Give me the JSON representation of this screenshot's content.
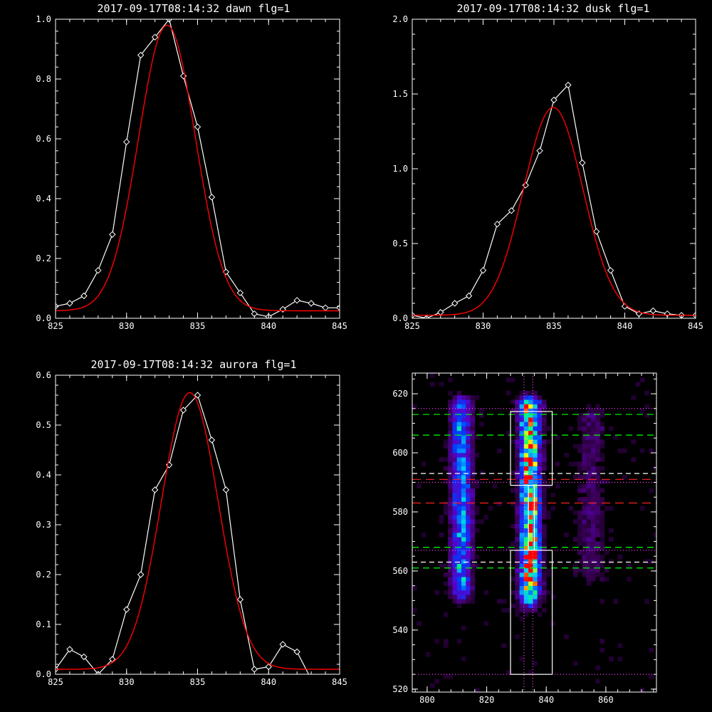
{
  "colors": {
    "background": "#000000",
    "axis": "#ffffff",
    "data_line": "#ffffff",
    "fit_line": "#ff0000",
    "green_dashed": "#00ff00",
    "red_dashed": "#ff2020",
    "white_dashed": "#ffffff",
    "magenta_dotted": "#ff40ff",
    "box": "#ffffff"
  },
  "chart_data": [
    {
      "id": "dawn",
      "type": "line",
      "title": "2017-09-17T08:14:32 dawn flg=1",
      "xlim": [
        825,
        845
      ],
      "ylim": [
        0,
        1.0
      ],
      "xticks": [
        825,
        830,
        835,
        840,
        845
      ],
      "yticks": [
        0.0,
        0.2,
        0.4,
        0.6,
        0.8,
        1.0
      ],
      "ytick_labels": [
        "0.0",
        "0.2",
        "0.4",
        "0.6",
        "0.8",
        "1.0"
      ],
      "series": [
        {
          "style": "data-diamonds",
          "x": [
            825,
            826,
            827,
            828,
            829,
            830,
            831,
            832,
            833,
            834,
            835,
            836,
            837,
            838,
            839,
            840,
            841,
            842,
            843,
            844,
            845
          ],
          "y": [
            0.04,
            0.05,
            0.075,
            0.16,
            0.28,
            0.59,
            0.88,
            0.94,
            1.0,
            0.81,
            0.64,
            0.405,
            0.155,
            0.085,
            0.015,
            0.005,
            0.03,
            0.06,
            0.05,
            0.035,
            0.035
          ]
        },
        {
          "style": "fit",
          "gauss": {
            "a": 0.955,
            "mu": 832.85,
            "sigma": 2.0,
            "c": 0.025
          }
        }
      ]
    },
    {
      "id": "dusk",
      "type": "line",
      "title": "2017-09-17T08:14:32 dusk flg=1",
      "xlim": [
        825,
        845
      ],
      "ylim": [
        0,
        2.0
      ],
      "xticks": [
        825,
        830,
        835,
        840,
        845
      ],
      "yticks": [
        0.0,
        0.5,
        1.0,
        1.5,
        2.0
      ],
      "ytick_labels": [
        "0.0",
        "0.5",
        "1.0",
        "1.5",
        "2.0"
      ],
      "series": [
        {
          "style": "data-diamonds",
          "x": [
            825,
            826,
            827,
            828,
            829,
            830,
            831,
            832,
            833,
            834,
            835,
            836,
            837,
            838,
            839,
            840,
            841,
            842,
            843,
            844,
            845
          ],
          "y": [
            0.02,
            0.0,
            0.04,
            0.1,
            0.15,
            0.32,
            0.63,
            0.72,
            0.89,
            1.12,
            1.46,
            1.56,
            1.04,
            0.58,
            0.32,
            0.08,
            0.03,
            0.05,
            0.03,
            0.02,
            0.02
          ]
        },
        {
          "style": "fit",
          "gauss": {
            "a": 1.39,
            "mu": 834.95,
            "sigma": 2.1,
            "c": 0.02
          }
        }
      ]
    },
    {
      "id": "aurora",
      "type": "line",
      "title": "2017-09-17T08:14:32 aurora flg=1",
      "xlim": [
        825,
        845
      ],
      "ylim": [
        0,
        0.6
      ],
      "xticks": [
        825,
        830,
        835,
        840,
        845
      ],
      "yticks": [
        0.0,
        0.1,
        0.2,
        0.3,
        0.4,
        0.5,
        0.6
      ],
      "ytick_labels": [
        "0.0",
        "0.1",
        "0.2",
        "0.3",
        "0.4",
        "0.5",
        "0.6"
      ],
      "series": [
        {
          "style": "data-diamonds",
          "x": [
            825,
            826,
            827,
            828,
            829,
            830,
            831,
            832,
            833,
            834,
            835,
            836,
            837,
            838,
            839,
            840,
            841,
            842,
            843,
            844,
            845
          ],
          "y": [
            0.01,
            0.05,
            0.035,
            0.0,
            0.03,
            0.13,
            0.2,
            0.37,
            0.42,
            0.53,
            0.56,
            0.47,
            0.37,
            0.15,
            0.01,
            0.015,
            0.06,
            0.045,
            -0.01,
            -0.02,
            -0.01
          ]
        },
        {
          "style": "fit",
          "gauss": {
            "a": 0.555,
            "mu": 834.45,
            "sigma": 2.0,
            "c": 0.01
          }
        }
      ]
    },
    {
      "id": "image",
      "type": "heatmap",
      "title": "",
      "xlim": [
        795,
        877
      ],
      "ylim": [
        519,
        627
      ],
      "xticks": [
        800,
        820,
        840,
        860
      ],
      "yticks": [
        520,
        540,
        560,
        580,
        600,
        620
      ],
      "emission_columns": [
        {
          "x": 811.5,
          "y_from": 555,
          "y_to": 616,
          "peak": 0.5
        },
        {
          "x": 834.5,
          "y_from": 553,
          "y_to": 616,
          "peak": 0.9
        },
        {
          "x": 855,
          "y_from": 560,
          "y_to": 612,
          "peak": 0.12
        }
      ],
      "boxes": [
        {
          "x0": 828,
          "x1": 842,
          "y0": 589,
          "y1": 614
        },
        {
          "x0": 828,
          "x1": 842,
          "y0": 525,
          "y1": 567
        },
        {
          "x0": 834,
          "x1": 836,
          "y0": 567,
          "y1": 589
        }
      ],
      "hlines": [
        {
          "y": 613,
          "style": "green-dashed"
        },
        {
          "y": 606,
          "style": "green-dashed"
        },
        {
          "y": 593,
          "style": "white-dashed"
        },
        {
          "y": 591,
          "style": "red-dashed"
        },
        {
          "y": 583,
          "style": "red-dashed"
        },
        {
          "y": 568,
          "style": "green-dashed"
        },
        {
          "y": 563,
          "style": "white-dashed"
        },
        {
          "y": 561,
          "style": "green-dashed"
        },
        {
          "y": 615,
          "style": "magenta-dotted"
        },
        {
          "y": 590,
          "style": "magenta-dotted"
        },
        {
          "y": 567,
          "style": "magenta-dotted"
        },
        {
          "y": 525,
          "style": "magenta-dotted"
        }
      ],
      "vlines": [
        {
          "x": 832.5,
          "style": "magenta-dotted"
        },
        {
          "x": 835.5,
          "style": "magenta-dotted"
        }
      ]
    }
  ]
}
